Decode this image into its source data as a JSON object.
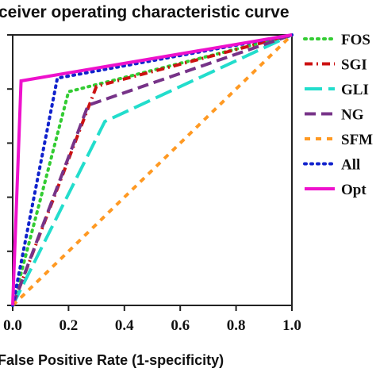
{
  "chart_data": {
    "type": "line",
    "title": "ceiver operating characteristic curve",
    "xlabel": "False Positive Rate (1-specificity)",
    "ylabel": "",
    "xlim": [
      0,
      1
    ],
    "ylim": [
      0,
      1
    ],
    "x_ticks": [
      "0.0",
      "0.2",
      "0.4",
      "0.6",
      "0.8",
      "1.0"
    ],
    "grid": false,
    "legend_position": "right",
    "series": [
      {
        "name": "FOS",
        "color": "#33cc33",
        "style": "dotted",
        "x": [
          0,
          0.2,
          1
        ],
        "y": [
          0,
          0.79,
          1
        ]
      },
      {
        "name": "SGI",
        "color": "#cc1111",
        "style": "dashdot",
        "x": [
          0,
          0.3,
          1
        ],
        "y": [
          0,
          0.81,
          1
        ]
      },
      {
        "name": "GLI",
        "color": "#22ddcc",
        "style": "longdash",
        "x": [
          0,
          0.33,
          1
        ],
        "y": [
          0,
          0.68,
          1
        ]
      },
      {
        "name": "NG",
        "color": "#773388",
        "style": "dash",
        "x": [
          0,
          0.27,
          1
        ],
        "y": [
          0,
          0.74,
          1
        ]
      },
      {
        "name": "SFM",
        "color": "#ff9922",
        "style": "shortdash",
        "x": [
          0,
          1
        ],
        "y": [
          0,
          1
        ]
      },
      {
        "name": "All",
        "color": "#1122cc",
        "style": "dotted",
        "x": [
          0,
          0.16,
          1
        ],
        "y": [
          0,
          0.84,
          1
        ]
      },
      {
        "name": "Opt",
        "color": "#ee11cc",
        "style": "solid",
        "x": [
          0,
          0.03,
          1
        ],
        "y": [
          0,
          0.83,
          1
        ]
      }
    ]
  }
}
